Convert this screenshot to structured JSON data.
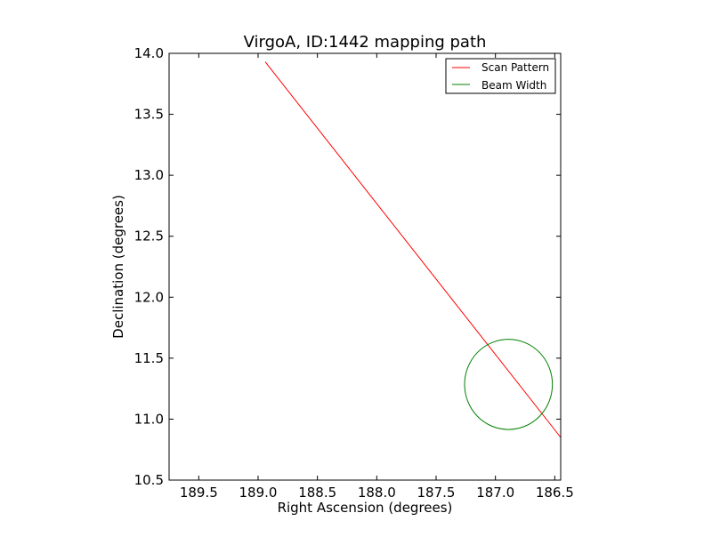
{
  "chart_data": {
    "type": "line",
    "title": "VirgoA, ID:1442 mapping path",
    "xlabel": "Right Ascension (degrees)",
    "ylabel": "Declination (degrees)",
    "xlim": [
      189.75,
      186.45
    ],
    "ylim": [
      10.5,
      14.0
    ],
    "x_inverted": true,
    "xticks": [
      189.5,
      189.0,
      188.5,
      188.0,
      187.5,
      187.0,
      186.5
    ],
    "xtick_labels": [
      "189.5",
      "189.0",
      "188.5",
      "188.0",
      "187.5",
      "187.0",
      "186.5"
    ],
    "yticks": [
      10.5,
      11.0,
      11.5,
      12.0,
      12.5,
      13.0,
      13.5,
      14.0
    ],
    "ytick_labels": [
      "10.5",
      "11.0",
      "11.5",
      "12.0",
      "12.5",
      "13.0",
      "13.5",
      "14.0"
    ],
    "grid": false,
    "legend_position": "top-right",
    "series": [
      {
        "name": "Scan Pattern",
        "kind": "line",
        "color": "#ff0000",
        "x": [
          188.94,
          186.45
        ],
        "y": [
          13.93,
          10.85
        ]
      },
      {
        "name": "Beam Width",
        "kind": "circle",
        "color": "#008000",
        "center": [
          186.89,
          11.285
        ],
        "radius_deg": 0.37
      }
    ]
  }
}
